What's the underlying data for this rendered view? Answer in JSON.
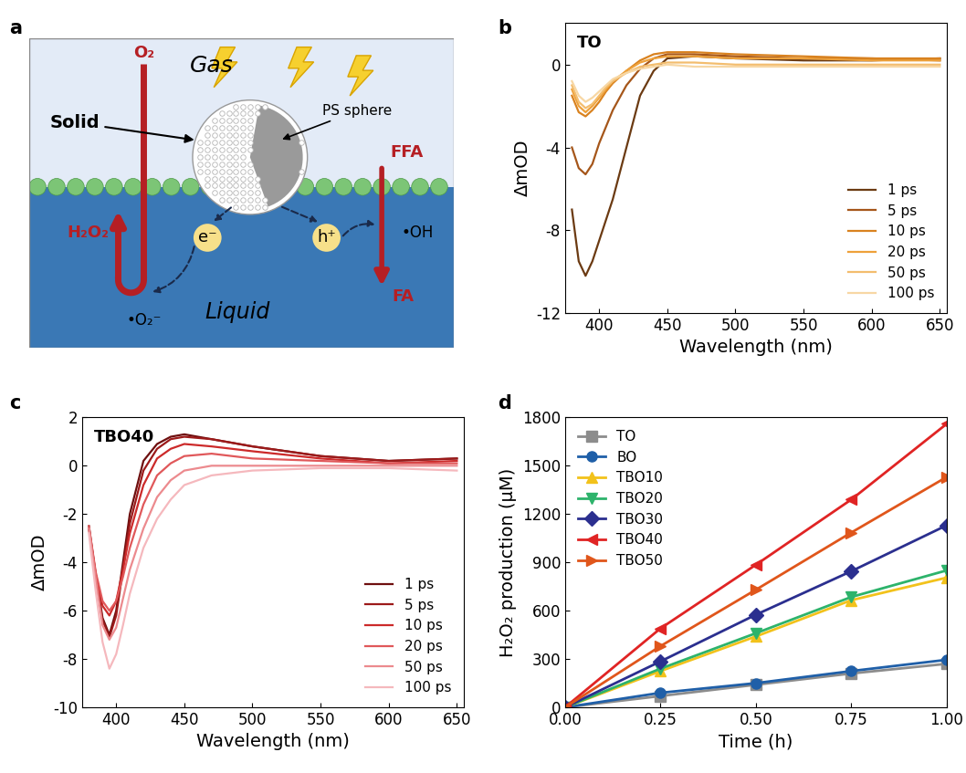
{
  "panel_labels": [
    "a",
    "b",
    "c",
    "d"
  ],
  "diagram": {
    "texts": {
      "gas": "Gas",
      "o2": "O₂",
      "solid": "Solid",
      "ps": "PS sphere",
      "ffa": "FFA",
      "h2o2": "H₂O₂",
      "oh": "•OH",
      "fa": "FA",
      "e": "e⁻",
      "h": "h⁺",
      "o2rad": "•O₂⁻",
      "liquid": "Liquid"
    }
  },
  "chart_data": [
    {
      "type": "line",
      "annotations": [
        "TO"
      ],
      "x_label": "Wavelength (nm)",
      "y_label": "ΔmOD",
      "x": [
        380,
        385,
        390,
        395,
        400,
        405,
        410,
        420,
        430,
        440,
        450,
        470,
        500,
        550,
        600,
        650
      ],
      "xlim": [
        375,
        655
      ],
      "xticks": [
        400,
        450,
        500,
        550,
        600,
        650
      ],
      "ylim": [
        -12,
        2
      ],
      "yticks": [
        -12,
        -8,
        -4,
        0
      ],
      "legend": "lower right",
      "series": [
        {
          "name": "1 ps",
          "color": "#6b3a12",
          "values": [
            -7,
            -9.5,
            -10.2,
            -9.5,
            -8.5,
            -7.5,
            -6.5,
            -4,
            -1.5,
            -0.3,
            0.3,
            0.4,
            0.3,
            0.2,
            0.2,
            0.3
          ]
        },
        {
          "name": "5 ps",
          "color": "#a5561a",
          "values": [
            -4,
            -5,
            -5.3,
            -4.8,
            -3.8,
            -3,
            -2.2,
            -1,
            -0.2,
            0.3,
            0.5,
            0.5,
            0.4,
            0.3,
            0.3,
            0.2
          ]
        },
        {
          "name": "10 ps",
          "color": "#d9821f",
          "values": [
            -1.5,
            -2.3,
            -2.5,
            -2.2,
            -1.8,
            -1.3,
            -0.9,
            -0.3,
            0.2,
            0.5,
            0.6,
            0.6,
            0.5,
            0.4,
            0.3,
            0.3
          ]
        },
        {
          "name": "20 ps",
          "color": "#eea13a",
          "values": [
            -1.2,
            -2,
            -2.3,
            -2,
            -1.6,
            -1.2,
            -0.8,
            -0.3,
            0.1,
            0.3,
            0.4,
            0.4,
            0.3,
            0.3,
            0.2,
            0.2
          ]
        },
        {
          "name": "50 ps",
          "color": "#f3bd6e",
          "values": [
            -1,
            -1.8,
            -2.1,
            -1.9,
            -1.5,
            -1.1,
            -0.8,
            -0.4,
            -0.1,
            0.0,
            0.1,
            0.1,
            0.0,
            0.0,
            0.0,
            0.0
          ]
        },
        {
          "name": "100 ps",
          "color": "#f7d7a4",
          "values": [
            -0.8,
            -1.5,
            -1.8,
            -1.6,
            -1.3,
            -1,
            -0.7,
            -0.4,
            -0.2,
            -0.1,
            0.0,
            -0.1,
            -0.1,
            -0.1,
            -0.1,
            -0.1
          ]
        }
      ]
    },
    {
      "type": "line",
      "annotations": [
        "TBO40"
      ],
      "x_label": "Wavelength (nm)",
      "y_label": "ΔmOD",
      "x": [
        380,
        385,
        390,
        395,
        400,
        405,
        410,
        420,
        430,
        440,
        450,
        470,
        500,
        550,
        600,
        650
      ],
      "xlim": [
        375,
        655
      ],
      "xticks": [
        400,
        450,
        500,
        550,
        600,
        650
      ],
      "ylim": [
        -10,
        2
      ],
      "yticks": [
        -10,
        -8,
        -6,
        -4,
        -2,
        0,
        2
      ],
      "legend": "lower right",
      "series": [
        {
          "name": "1 ps",
          "color": "#6e0f0f",
          "values": [
            -2.5,
            -4.5,
            -6.3,
            -7.0,
            -6.0,
            -4.0,
            -2.0,
            0.2,
            0.9,
            1.2,
            1.3,
            1.1,
            0.8,
            0.4,
            0.2,
            0.3
          ]
        },
        {
          "name": "5 ps",
          "color": "#9c1a1a",
          "values": [
            -2.6,
            -4.6,
            -6.4,
            -7.1,
            -6.2,
            -4.3,
            -2.4,
            -0.2,
            0.7,
            1.1,
            1.2,
            1.1,
            0.8,
            0.4,
            0.2,
            0.3
          ]
        },
        {
          "name": "10 ps",
          "color": "#cc2a2a",
          "values": [
            -2.6,
            -4.5,
            -5.8,
            -6.2,
            -5.6,
            -4.3,
            -2.8,
            -0.8,
            0.3,
            0.7,
            0.9,
            0.8,
            0.6,
            0.3,
            0.1,
            0.2
          ]
        },
        {
          "name": "20 ps",
          "color": "#e0585a",
          "values": [
            -2.5,
            -4.4,
            -5.6,
            -6.0,
            -5.6,
            -4.6,
            -3.4,
            -1.6,
            -0.4,
            0.1,
            0.4,
            0.5,
            0.3,
            0.2,
            0.1,
            0.1
          ]
        },
        {
          "name": "50 ps",
          "color": "#ec8a8e",
          "values": [
            -2.6,
            -4.7,
            -6.6,
            -7.2,
            -6.7,
            -5.5,
            -4.3,
            -2.6,
            -1.3,
            -0.6,
            -0.2,
            0.0,
            0.0,
            0.0,
            0.0,
            0.0
          ]
        },
        {
          "name": "100 ps",
          "color": "#f5b8bd",
          "values": [
            -2.8,
            -5.2,
            -7.3,
            -8.4,
            -7.8,
            -6.6,
            -5.3,
            -3.4,
            -2.2,
            -1.4,
            -0.8,
            -0.4,
            -0.2,
            -0.1,
            -0.1,
            -0.2
          ]
        }
      ]
    },
    {
      "type": "line",
      "x_label": "Time (h)",
      "y_label": "H₂O₂ production (μM)",
      "x": [
        0,
        0.25,
        0.5,
        0.75,
        1.0
      ],
      "xlim": [
        0,
        1.0
      ],
      "xticks": [
        {
          "value": 0,
          "label": "0.00"
        },
        {
          "value": 0.25,
          "label": "0.25"
        },
        {
          "value": 0.5,
          "label": "0.50"
        },
        {
          "value": 0.75,
          "label": "0.75"
        },
        {
          "value": 1.0,
          "label": "1.00"
        }
      ],
      "ylim": [
        0,
        1800
      ],
      "yticks": [
        0,
        300,
        600,
        900,
        1200,
        1500,
        1800
      ],
      "legend": "upper left",
      "series": [
        {
          "name": "TO",
          "color": "#8c8c8c",
          "marker": "square",
          "values": [
            0,
            70,
            140,
            210,
            270
          ]
        },
        {
          "name": "BO",
          "color": "#1f5fa8",
          "marker": "circle",
          "values": [
            0,
            90,
            150,
            225,
            295
          ]
        },
        {
          "name": "TBO10",
          "color": "#f2c21b",
          "marker": "triangle_up",
          "values": [
            0,
            225,
            440,
            665,
            805
          ]
        },
        {
          "name": "TBO20",
          "color": "#2db36b",
          "marker": "triangle_down",
          "values": [
            0,
            240,
            460,
            685,
            850
          ]
        },
        {
          "name": "TBO30",
          "color": "#2b2f8f",
          "marker": "diamond",
          "values": [
            0,
            285,
            575,
            845,
            1130
          ]
        },
        {
          "name": "TBO40",
          "color": "#e02424",
          "marker": "triangle_left",
          "values": [
            0,
            490,
            885,
            1290,
            1760
          ]
        },
        {
          "name": "TBO50",
          "color": "#e0561b",
          "marker": "triangle_right",
          "values": [
            0,
            380,
            730,
            1085,
            1430
          ]
        }
      ]
    }
  ]
}
